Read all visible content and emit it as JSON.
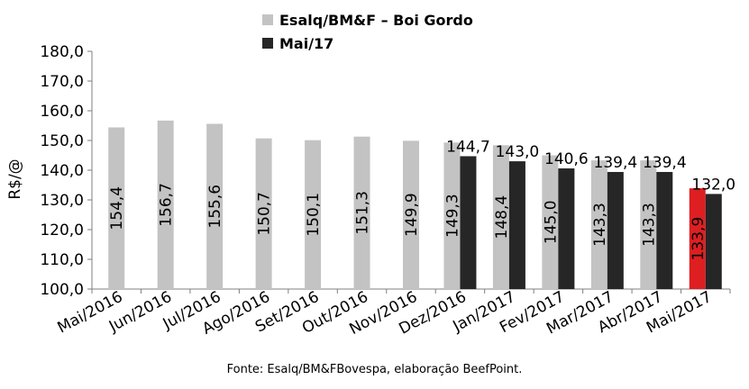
{
  "chart_data": {
    "type": "bar",
    "title": "",
    "xlabel": "",
    "ylabel": "R$/@",
    "ylim": [
      100,
      180
    ],
    "yticks": [
      "100,0",
      "110,0",
      "120,0",
      "130,0",
      "140,0",
      "150,0",
      "160,0",
      "170,0",
      "180,0"
    ],
    "legend_position": "top",
    "categories": [
      "Mai/2016",
      "Jun/2016",
      "Jul/2016",
      "Ago/2016",
      "Set/2016",
      "Out/2016",
      "Nov/2016",
      "Dez/2016",
      "Jan/2017",
      "Fev/2017",
      "Mar/2017",
      "Abr/2017",
      "Mai/2017"
    ],
    "series": [
      {
        "name": "Esalq/BM&F – Boi Gordo",
        "color": "#c3c3c3",
        "highlight_color": "#dd1f22",
        "highlight_index": 12,
        "values": [
          154.4,
          156.7,
          155.6,
          150.7,
          150.1,
          151.3,
          149.9,
          149.3,
          148.4,
          145.0,
          143.3,
          143.3,
          133.9
        ],
        "labels": [
          "154,4",
          "156,7",
          "155,6",
          "150,7",
          "150,1",
          "151,3",
          "149,9",
          "149,3",
          "148,4",
          "145,0",
          "143,3",
          "143,3",
          "133,9"
        ]
      },
      {
        "name": "Mai/17",
        "color": "#262626",
        "values": [
          null,
          null,
          null,
          null,
          null,
          null,
          null,
          144.7,
          143.0,
          140.6,
          139.4,
          139.4,
          132.0
        ],
        "labels": [
          "",
          "",
          "",
          "",
          "",
          "",
          "",
          "144,7",
          "143,0",
          "140,6",
          "139,4",
          "139,4",
          "132,0"
        ]
      }
    ]
  },
  "source": "Fonte:  Esalq/BM&FBovespa,  elaboração  BeefPoint."
}
